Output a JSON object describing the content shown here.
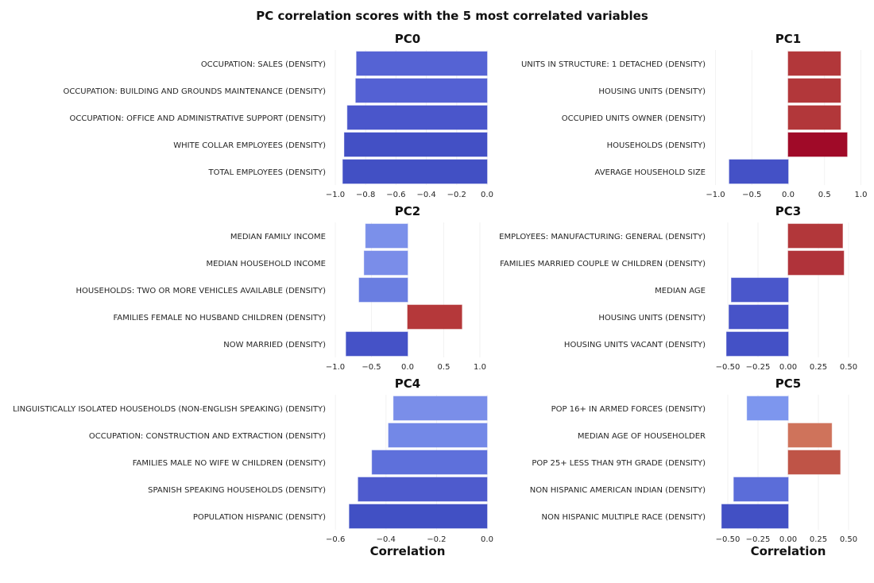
{
  "chart_data": {
    "type": "bar",
    "orientation": "horizontal",
    "title": "PC correlation scores with the 5 most correlated variables",
    "xlabel": "Correlation",
    "grid": true,
    "colormap": "coolwarm",
    "panels": [
      {
        "title": "PC0",
        "xlim": [
          -1.0,
          0.0
        ],
        "ticks": [
          -1.0,
          -0.8,
          -0.6,
          -0.4,
          -0.2,
          0.0
        ],
        "tick_labels": [
          "−1.0",
          "−0.8",
          "−0.6",
          "−0.4",
          "−0.2",
          "0.0"
        ],
        "categories": [
          "OCCUPATION: SALES (DENSITY)",
          "OCCUPATION: BUILDING AND GROUNDS MAINTENANCE (DENSITY)",
          "OCCUPATION: OFFICE AND ADMINISTRATIVE SUPPORT (DENSITY)",
          "WHITE COLLAR EMPLOYEES (DENSITY)",
          "TOTAL EMPLOYEES (DENSITY)"
        ],
        "values": [
          -0.86,
          -0.865,
          -0.92,
          -0.94,
          -0.95
        ],
        "colors": [
          "#5563d4",
          "#5461d3",
          "#4a56cb",
          "#4350c5",
          "#4250c4"
        ]
      },
      {
        "title": "PC1",
        "xlim": [
          -1.0,
          1.0
        ],
        "ticks": [
          -1.0,
          -0.5,
          0.0,
          0.5,
          1.0
        ],
        "tick_labels": [
          "−1.0",
          "−0.5",
          "0.0",
          "0.5",
          "1.0"
        ],
        "categories": [
          "UNITS IN STRUCTURE: 1 DETACHED (DENSITY)",
          "HOUSING UNITS (DENSITY)",
          "OCCUPIED UNITS OWNER (DENSITY)",
          "HOUSEHOLDS (DENSITY)",
          "AVERAGE HOUSEHOLD SIZE"
        ],
        "values": [
          0.72,
          0.72,
          0.72,
          0.81,
          -0.81
        ],
        "colors": [
          "#b2373a",
          "#b2373a",
          "#b2373a",
          "#a00a28",
          "#4451c6"
        ]
      },
      {
        "title": "PC2",
        "xlim": [
          -1.0,
          1.0
        ],
        "ticks": [
          -1.0,
          -0.5,
          0.0,
          0.5,
          1.0
        ],
        "tick_labels": [
          "−1.0",
          "−0.5",
          "0.0",
          "0.5",
          "1.0"
        ],
        "categories": [
          "MEDIAN FAMILY INCOME",
          "MEDIAN HOUSEHOLD INCOME",
          "HOUSEHOLDS: TWO OR MORE VEHICLES AVAILABLE (DENSITY)",
          "FAMILIES FEMALE NO HUSBAND CHILDREN (DENSITY)",
          "NOW MARRIED (DENSITY)"
        ],
        "values": [
          -0.58,
          -0.6,
          -0.67,
          0.75,
          -0.85
        ],
        "colors": [
          "#7b90ea",
          "#7a8de9",
          "#6a7ee1",
          "#b5383a",
          "#4552c7"
        ]
      },
      {
        "title": "PC3",
        "xlim": [
          -0.55,
          0.55
        ],
        "ticks": [
          -0.5,
          -0.25,
          0.0,
          0.25,
          0.5
        ],
        "tick_labels": [
          "−0.50",
          "−0.25",
          "0.00",
          "0.25",
          "0.50"
        ],
        "categories": [
          "EMPLOYEES: MANUFACTURING: GENERAL (DENSITY)",
          "FAMILIES MARRIED COUPLE W CHILDREN (DENSITY)",
          "MEDIAN AGE",
          "HOUSING UNITS (DENSITY)",
          "HOUSING UNITS VACANT (DENSITY)"
        ],
        "values": [
          0.45,
          0.46,
          -0.47,
          -0.49,
          -0.51
        ],
        "colors": [
          "#b2373a",
          "#b0333a",
          "#4a57cb",
          "#4753c8",
          "#4451c6"
        ]
      },
      {
        "title": "PC4",
        "xlim": [
          -0.6,
          0.0
        ],
        "ticks": [
          -0.6,
          -0.4,
          -0.2,
          0.0
        ],
        "tick_labels": [
          "−0.6",
          "−0.4",
          "−0.2",
          "0.0"
        ],
        "categories": [
          "LINGUISTICALLY ISOLATED HOUSEHOLDS (NON-ENGLISH SPEAKING) (DENSITY)",
          "OCCUPATION: CONSTRUCTION AND EXTRACTION (DENSITY)",
          "FAMILIES MALE NO WIFE W CHILDREN (DENSITY)",
          "SPANISH SPEAKING HOUSEHOLDS (DENSITY)",
          "POPULATION HISPANIC (DENSITY)"
        ],
        "values": [
          -0.37,
          -0.39,
          -0.455,
          -0.51,
          -0.545
        ],
        "colors": [
          "#7a8ee9",
          "#7388e7",
          "#5e70db",
          "#4e5bcd",
          "#4150c4"
        ]
      },
      {
        "title": "PC5",
        "xlim": [
          -0.55,
          0.55
        ],
        "ticks": [
          -0.5,
          -0.25,
          0.0,
          0.25,
          0.5
        ],
        "tick_labels": [
          "−0.50",
          "−0.25",
          "0.00",
          "0.25",
          "0.50"
        ],
        "categories": [
          "POP 16+ IN ARMED FORCES (DENSITY)",
          "MEDIAN AGE OF HOUSEHOLDER",
          "POP 25+ LESS THAN 9TH GRADE (DENSITY)",
          "NON HISPANIC AMERICAN INDIAN (DENSITY)",
          "NON HISPANIC MULTIPLE RACE (DENSITY)"
        ],
        "values": [
          -0.34,
          0.36,
          0.43,
          -0.45,
          -0.55
        ],
        "colors": [
          "#7d96ee",
          "#cf735b",
          "#bf5447",
          "#5b6dd9",
          "#4250c4"
        ]
      }
    ]
  }
}
